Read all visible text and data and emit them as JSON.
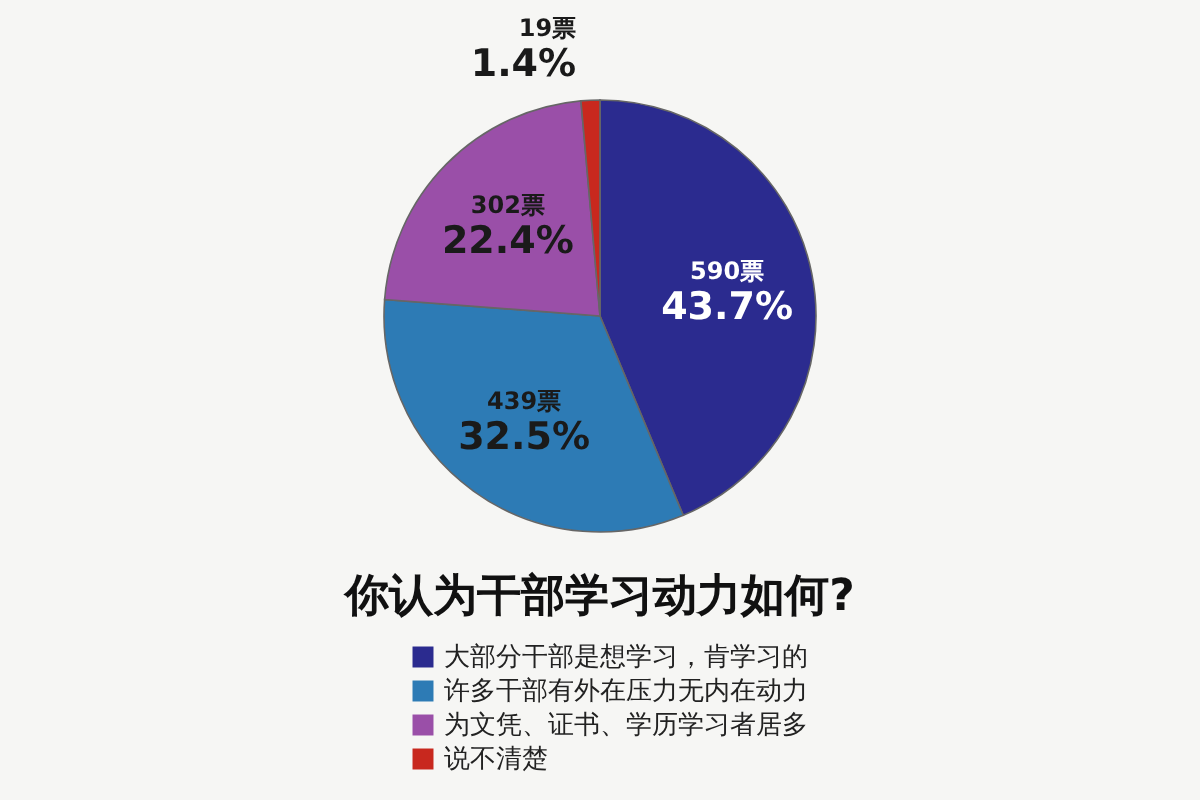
{
  "chart_data": {
    "type": "pie",
    "title": "你认为干部学习动力如何?",
    "categories": [
      "大部分干部是想学习，肯学习的",
      "许多干部有外在压力无内在动力",
      "为文凭、证书、学历学习者居多",
      "说不清楚"
    ],
    "values": [
      590,
      439,
      302,
      19
    ],
    "colors": [
      "#2b2b8f",
      "#2d7bb5",
      "#9a4fa8",
      "#c8281e"
    ],
    "value_labels": [
      "590票\n43.7%",
      "439票\n32.5%",
      "302票\n22.4%",
      "19票\n1.4%"
    ],
    "legend": "bottom"
  }
}
